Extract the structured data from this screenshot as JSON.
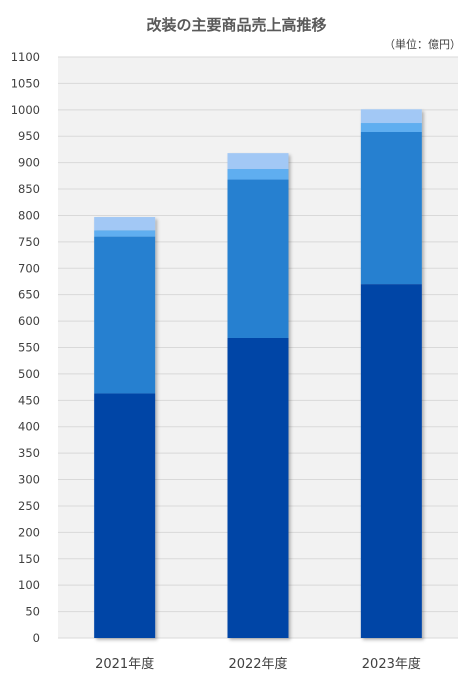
{
  "chart_data": {
    "type": "bar",
    "stacked": true,
    "title": "改装の主要商品売上高推移",
    "unit_note": "（単位：億円）",
    "categories": [
      "2021年度",
      "2022年度",
      "2023年度"
    ],
    "series": [
      {
        "values": [
          463,
          568,
          670
        ],
        "color": "#0645a6"
      },
      {
        "values": [
          297,
          300,
          288
        ],
        "color": "#2880d0"
      },
      {
        "values": [
          12,
          20,
          17
        ],
        "color": "#5eaef0"
      },
      {
        "values": [
          25,
          30,
          26
        ],
        "color": "#a2c8f5"
      }
    ],
    "ylim": [
      0,
      1100
    ],
    "ytick_step": 50,
    "grid": true,
    "legend": "none",
    "background": "#f2f2f2"
  }
}
